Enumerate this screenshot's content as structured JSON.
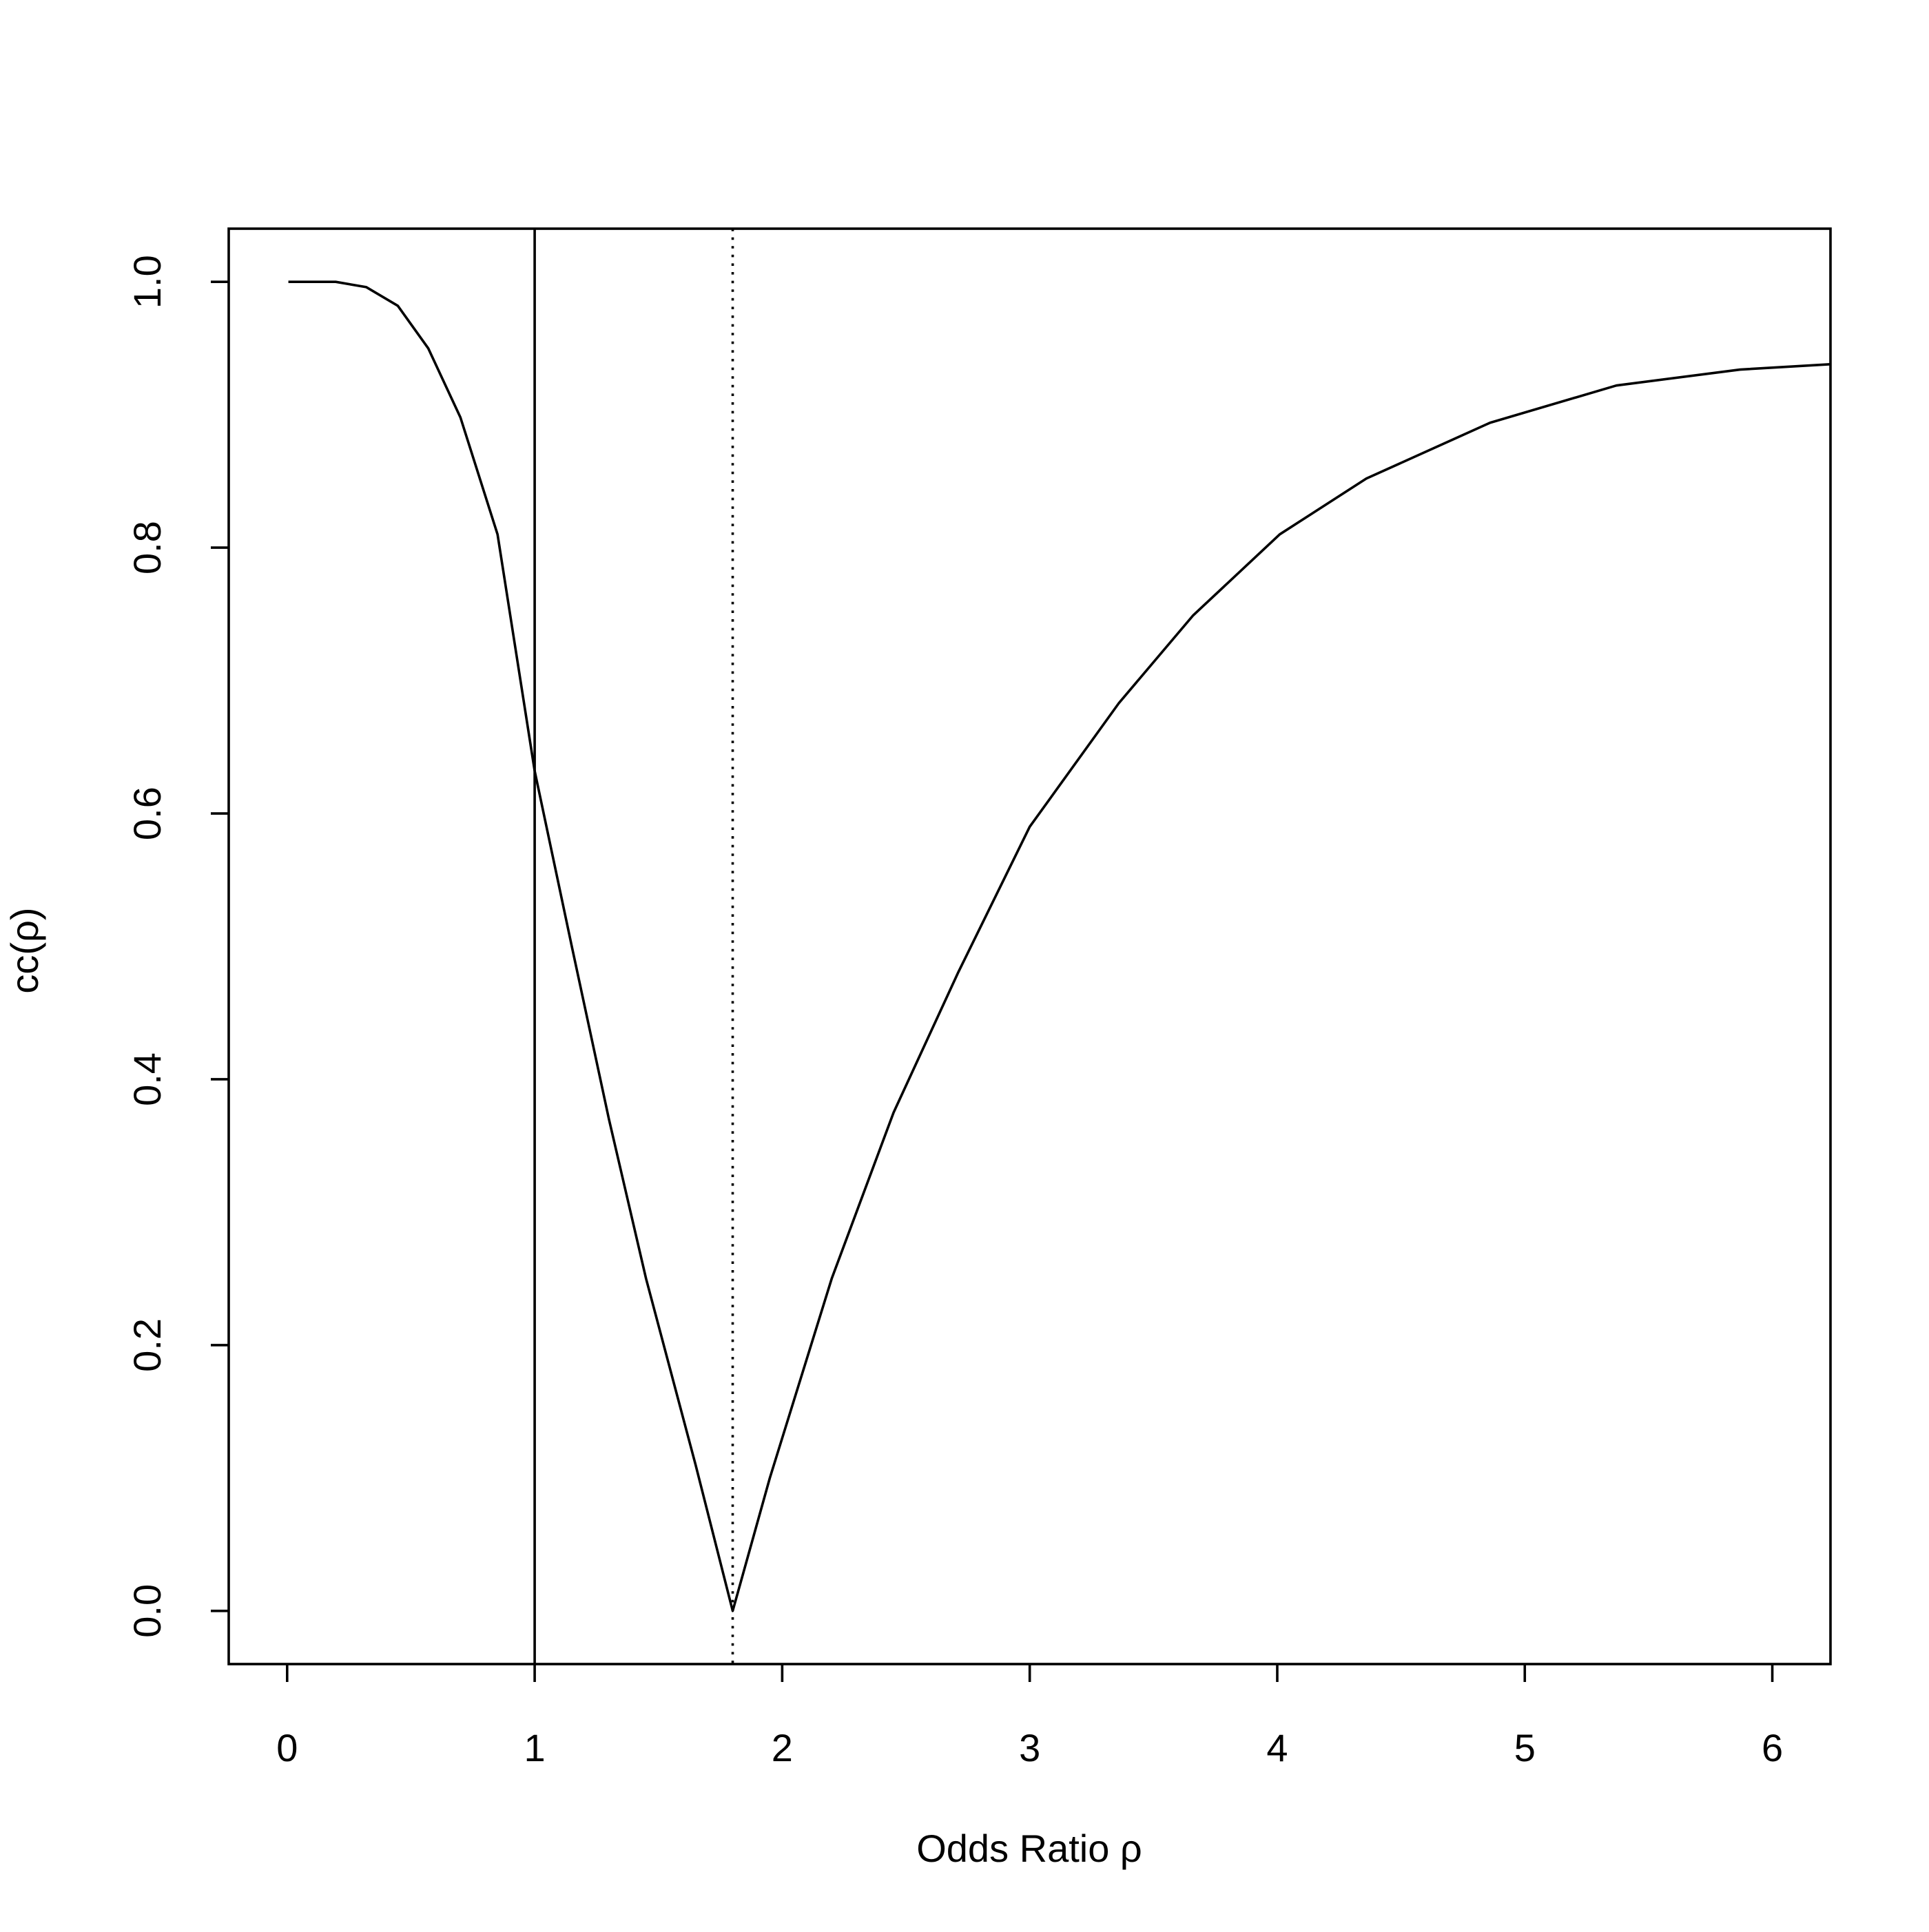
{
  "chart_data": {
    "type": "line",
    "xlabel": "Odds Ratio ρ",
    "ylabel": "cc(ρ)",
    "x": [
      0.005,
      0.196,
      0.32,
      0.447,
      0.57,
      0.7,
      0.85,
      1.0,
      1.15,
      1.3,
      1.45,
      1.65,
      1.8,
      1.95,
      2.2,
      2.45,
      2.71,
      3.0,
      3.36,
      3.66,
      4.01,
      4.36,
      4.86,
      5.37,
      5.87,
      6.235
    ],
    "values": [
      1.0,
      1.0,
      0.996,
      0.982,
      0.95,
      0.898,
      0.81,
      0.632,
      0.5,
      0.37,
      0.25,
      0.11,
      0.0,
      0.1,
      0.25,
      0.375,
      0.48,
      0.59,
      0.683,
      0.749,
      0.81,
      0.852,
      0.894,
      0.922,
      0.934,
      0.938
    ],
    "color": "#000000",
    "xlim": [
      -0.236,
      6.235
    ],
    "ylim": [
      -0.04,
      1.04
    ],
    "xticks": [
      0,
      1,
      2,
      3,
      4,
      5,
      6
    ],
    "yticks": [
      {
        "value": 0,
        "label": "0.0"
      },
      0.2,
      0.4,
      0.6,
      0.8,
      {
        "value": 1,
        "label": "1.0"
      }
    ],
    "vlines": [
      {
        "x": 1,
        "style": "solid"
      },
      {
        "x": 1.8,
        "style": "dotted"
      }
    ],
    "grid": false
  }
}
